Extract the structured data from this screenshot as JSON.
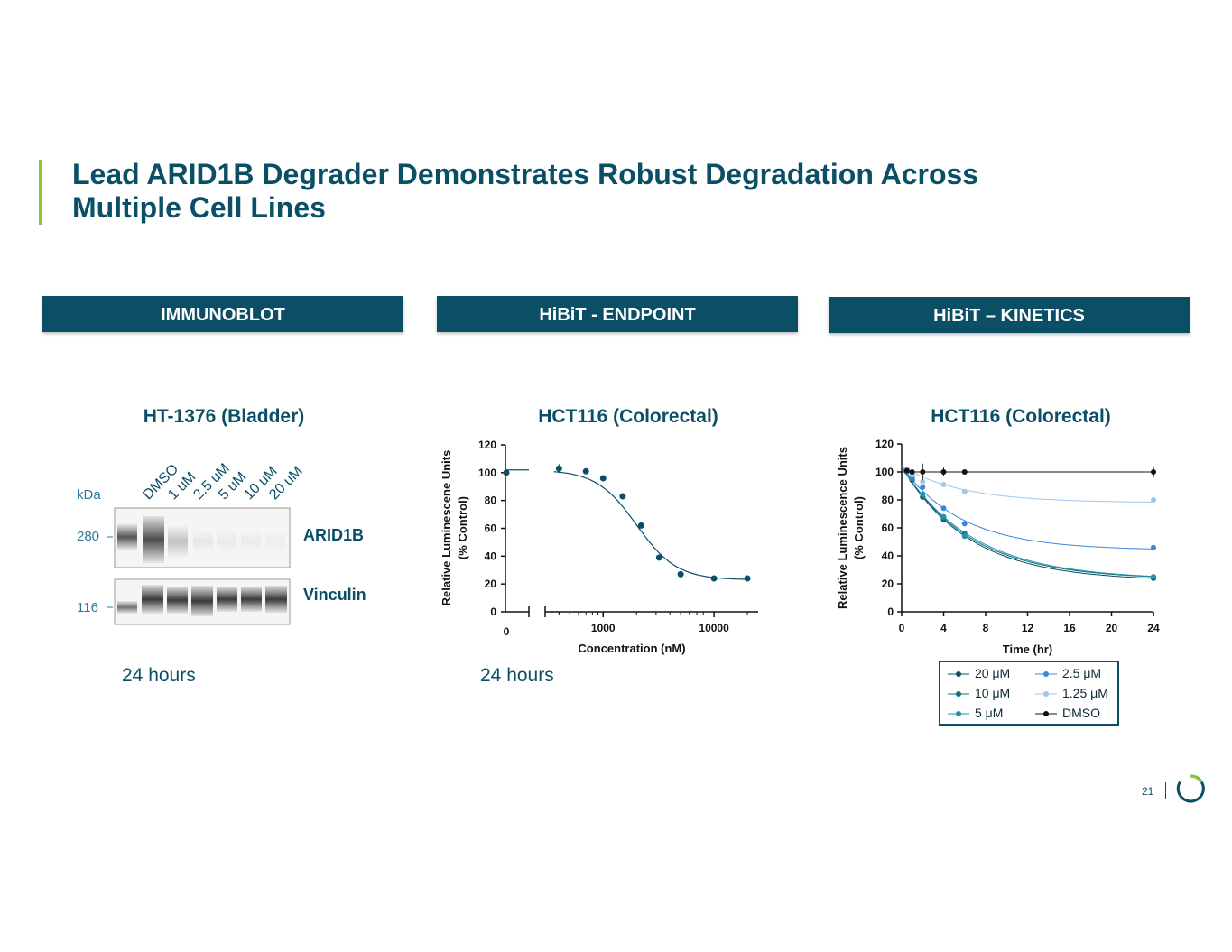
{
  "slide": {
    "title_line1": "Lead ARID1B Degrader Demonstrates Robust Degradation Across",
    "title_line2": "Multiple Cell Lines",
    "page_number": "21",
    "colors": {
      "brand": "#0b4f66",
      "accent": "#8cc63f"
    }
  },
  "sections": {
    "immunoblot": "IMMUNOBLOT",
    "endpoint": "HiBiT - ENDPOINT",
    "kinetics": "HiBiT – KINETICS"
  },
  "immunoblot": {
    "cell_line": "HT-1376 (Bladder)",
    "unit_label": "kDa",
    "lanes": [
      "DMSO",
      "1 uM",
      "2.5 uM",
      "5 uM",
      "10 uM",
      "20 uM"
    ],
    "markers": [
      "280",
      "116"
    ],
    "bands": [
      "ARID1B",
      "Vinculin"
    ],
    "caption": "24 hours"
  },
  "endpoint": {
    "cell_line": "HCT116 (Colorectal)",
    "caption": "24 hours"
  },
  "kinetics": {
    "cell_line": "HCT116 (Colorectal)"
  },
  "chart_data": [
    {
      "type": "scatter",
      "id": "endpoint",
      "title": "HCT116 (Colorectal)",
      "xlabel": "Concentration (nM)",
      "ylabel": "Relative Luminescene Units",
      "ylabel2": "(% Control)",
      "xscale": "log",
      "xlim": [
        300,
        25000
      ],
      "ylim": [
        0,
        120
      ],
      "yticks": [
        "0",
        "20",
        "40",
        "60",
        "80",
        "100",
        "120"
      ],
      "xticks": [
        "1000",
        "10000"
      ],
      "zero_label": "0",
      "zero_point": {
        "x": 0,
        "y": 100
      },
      "x": [
        400,
        700,
        1000,
        1500,
        2200,
        3200,
        5000,
        10000,
        20000
      ],
      "y": [
        103,
        101,
        96,
        83,
        62,
        39,
        27,
        24,
        24
      ],
      "fit": {
        "bottom": 23,
        "top": 102,
        "ec50": 2000,
        "hill": 2.4
      }
    },
    {
      "type": "line",
      "id": "kinetics",
      "title": "HCT116 (Colorectal)",
      "xlabel": "Time (hr)",
      "ylabel": "Relative Luminescence Units",
      "ylabel2": "(% Control)",
      "xlim": [
        0,
        24
      ],
      "ylim": [
        0,
        120
      ],
      "xticks": [
        "0",
        "4",
        "8",
        "12",
        "16",
        "20",
        "24"
      ],
      "yticks": [
        "0",
        "20",
        "40",
        "60",
        "80",
        "100",
        "120"
      ],
      "x": [
        0.5,
        1,
        2,
        4,
        6,
        24
      ],
      "series": [
        {
          "name": "20 μM",
          "color": "#0b4f66",
          "values": [
            100,
            94,
            82,
            66,
            55,
            24
          ]
        },
        {
          "name": "10 μM",
          "color": "#12707a",
          "values": [
            101,
            95,
            82,
            67,
            56,
            25
          ]
        },
        {
          "name": "5 μM",
          "color": "#1e94ad",
          "values": [
            100,
            96,
            84,
            68,
            54,
            25
          ]
        },
        {
          "name": "2.5 μM",
          "color": "#3c86d8",
          "values": [
            102,
            97,
            89,
            74,
            63,
            46
          ]
        },
        {
          "name": "1.25 μM",
          "color": "#9fc6ee",
          "values": [
            102,
            98,
            93,
            91,
            86,
            80
          ]
        },
        {
          "name": "DMSO",
          "color": "#111111",
          "values": [
            101,
            100,
            100,
            100,
            100,
            100
          ]
        }
      ]
    }
  ]
}
